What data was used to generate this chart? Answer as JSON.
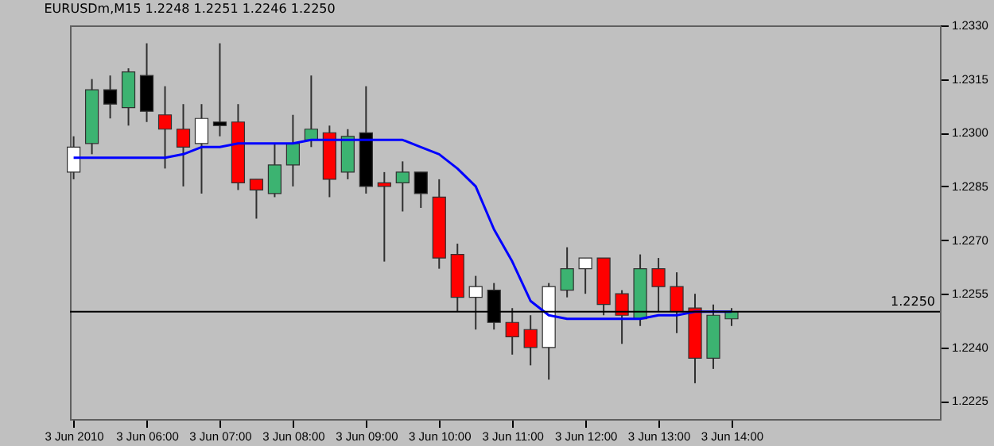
{
  "chart_data": {
    "type": "candlestick",
    "title": "EURUSDm,M15  1.2248 1.2251 1.2246 1.2250",
    "x": [
      "2010-06-03T05:00",
      "2010-06-03T05:15",
      "2010-06-03T05:30",
      "2010-06-03T05:45",
      "2010-06-03T06:00",
      "2010-06-03T06:15",
      "2010-06-03T06:30",
      "2010-06-03T06:45",
      "2010-06-03T07:00",
      "2010-06-03T07:15",
      "2010-06-03T07:30",
      "2010-06-03T07:45",
      "2010-06-03T08:00",
      "2010-06-03T08:15",
      "2010-06-03T08:30",
      "2010-06-03T08:45",
      "2010-06-03T09:00",
      "2010-06-03T09:15",
      "2010-06-03T09:30",
      "2010-06-03T09:45",
      "2010-06-03T10:00",
      "2010-06-03T10:15",
      "2010-06-03T10:30",
      "2010-06-03T10:45",
      "2010-06-03T11:00",
      "2010-06-03T11:15",
      "2010-06-03T11:30",
      "2010-06-03T11:45",
      "2010-06-03T12:00",
      "2010-06-03T12:15",
      "2010-06-03T12:30",
      "2010-06-03T12:45",
      "2010-06-03T13:00",
      "2010-06-03T13:15",
      "2010-06-03T13:30",
      "2010-06-03T13:45",
      "2010-06-03T14:00"
    ],
    "ohlc": [
      [
        1.2289,
        1.2299,
        1.2287,
        1.2296
      ],
      [
        1.2297,
        1.2315,
        1.2294,
        1.2312
      ],
      [
        1.2312,
        1.2316,
        1.2304,
        1.2308
      ],
      [
        1.2307,
        1.2318,
        1.2302,
        1.2317
      ],
      [
        1.2316,
        1.2325,
        1.2303,
        1.2306
      ],
      [
        1.2305,
        1.2313,
        1.229,
        1.2301
      ],
      [
        1.2301,
        1.2308,
        1.2285,
        1.2296
      ],
      [
        1.2297,
        1.2308,
        1.2283,
        1.2304
      ],
      [
        1.2303,
        1.2325,
        1.2299,
        1.2302
      ],
      [
        1.2303,
        1.2308,
        1.2284,
        1.2286
      ],
      [
        1.2287,
        1.2287,
        1.2276,
        1.2284
      ],
      [
        1.2283,
        1.2297,
        1.2282,
        1.2291
      ],
      [
        1.2291,
        1.2305,
        1.2285,
        1.2297
      ],
      [
        1.2298,
        1.2316,
        1.2296,
        1.2301
      ],
      [
        1.23,
        1.2302,
        1.2282,
        1.2287
      ],
      [
        1.2289,
        1.2301,
        1.2287,
        1.2299
      ],
      [
        1.23,
        1.2313,
        1.2283,
        1.2285
      ],
      [
        1.2286,
        1.2289,
        1.2264,
        1.2285
      ],
      [
        1.2286,
        1.2292,
        1.2278,
        1.2289
      ],
      [
        1.2289,
        1.2289,
        1.2279,
        1.2283
      ],
      [
        1.2282,
        1.2287,
        1.2262,
        1.2265
      ],
      [
        1.2266,
        1.2269,
        1.225,
        1.2254
      ],
      [
        1.2254,
        1.226,
        1.2245,
        1.2257
      ],
      [
        1.2256,
        1.2258,
        1.2245,
        1.2247
      ],
      [
        1.2247,
        1.2251,
        1.2238,
        1.2243
      ],
      [
        1.2245,
        1.2249,
        1.2235,
        1.224
      ],
      [
        1.224,
        1.2258,
        1.2231,
        1.2257
      ],
      [
        1.2256,
        1.2268,
        1.2254,
        1.2262
      ],
      [
        1.2262,
        1.2265,
        1.2255,
        1.2265
      ],
      [
        1.2265,
        1.2265,
        1.2249,
        1.2252
      ],
      [
        1.2255,
        1.2256,
        1.2241,
        1.2249
      ],
      [
        1.2248,
        1.2266,
        1.2246,
        1.2262
      ],
      [
        1.2262,
        1.2265,
        1.225,
        1.2257
      ],
      [
        1.2257,
        1.2261,
        1.2244,
        1.225
      ],
      [
        1.2251,
        1.2255,
        1.223,
        1.2237
      ],
      [
        1.2237,
        1.2252,
        1.2234,
        1.2249
      ],
      [
        1.2248,
        1.2251,
        1.2246,
        1.225
      ]
    ],
    "colors": [
      "#ffffff",
      "#3cb371",
      "#000000",
      "#3cb371",
      "#000000",
      "#ff0000",
      "#ff0000",
      "#ffffff",
      "#000000",
      "#ff0000",
      "#ff0000",
      "#3cb371",
      "#3cb371",
      "#3cb371",
      "#ff0000",
      "#3cb371",
      "#000000",
      "#ff0000",
      "#3cb371",
      "#000000",
      "#ff0000",
      "#ff0000",
      "#ffffff",
      "#000000",
      "#ff0000",
      "#ff0000",
      "#ffffff",
      "#3cb371",
      "#ffffff",
      "#ff0000",
      "#ff0000",
      "#3cb371",
      "#ff0000",
      "#ff0000",
      "#ff0000",
      "#3cb371",
      "#3cb371"
    ],
    "series": [
      {
        "type": "line",
        "color": "#0000ff",
        "values": [
          1.2293,
          1.2293,
          1.2293,
          1.2293,
          1.2293,
          1.2293,
          1.2294,
          1.2296,
          1.2296,
          1.2297,
          1.2297,
          1.2297,
          1.2297,
          1.2298,
          1.2298,
          1.2298,
          1.2298,
          1.2298,
          1.2298,
          1.2296,
          1.2294,
          1.229,
          1.2285,
          1.2273,
          1.2264,
          1.2253,
          1.2249,
          1.2248,
          1.2248,
          1.2248,
          1.2248,
          1.2248,
          1.2249,
          1.2249,
          1.225,
          1.225,
          1.225
        ]
      }
    ],
    "ref_lines": [
      {
        "axis": "y",
        "value": 1.225,
        "label": "1.2250",
        "color": "#000000"
      }
    ],
    "xlim": [
      "2010-06-03T04:57",
      "2010-06-03T16:51"
    ],
    "xticks": [
      {
        "value": "2010-06-03T05:00",
        "label": "3 Jun 2010"
      },
      {
        "value": "2010-06-03T06:00",
        "label": "3 Jun 06:00"
      },
      {
        "value": "2010-06-03T07:00",
        "label": "3 Jun 07:00"
      },
      {
        "value": "2010-06-03T08:00",
        "label": "3 Jun 08:00"
      },
      {
        "value": "2010-06-03T09:00",
        "label": "3 Jun 09:00"
      },
      {
        "value": "2010-06-03T10:00",
        "label": "3 Jun 10:00"
      },
      {
        "value": "2010-06-03T11:00",
        "label": "3 Jun 11:00"
      },
      {
        "value": "2010-06-03T12:00",
        "label": "3 Jun 12:00"
      },
      {
        "value": "2010-06-03T13:00",
        "label": "3 Jun 13:00"
      },
      {
        "value": "2010-06-03T14:00",
        "label": "3 Jun 14:00"
      }
    ],
    "ylim": [
      1.222,
      1.233
    ],
    "yticks": [
      {
        "value": 1.233,
        "label": "1.2330"
      },
      {
        "value": 1.2315,
        "label": "1.2315"
      },
      {
        "value": 1.23,
        "label": "1.2300"
      },
      {
        "value": 1.2285,
        "label": "1.2285"
      },
      {
        "value": 1.227,
        "label": "1.2270"
      },
      {
        "value": 1.2255,
        "label": "1.2255"
      },
      {
        "value": 1.224,
        "label": "1.2240"
      },
      {
        "value": 1.2225,
        "label": "1.2225"
      }
    ],
    "grid": false
  }
}
